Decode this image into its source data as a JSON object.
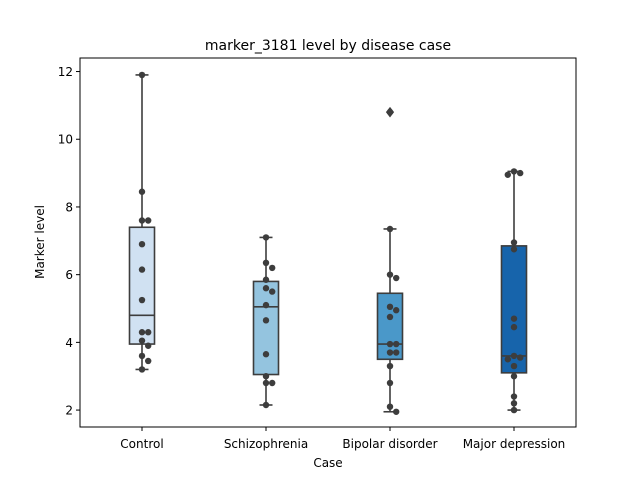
{
  "chart_data": {
    "type": "box",
    "title": "marker_3181 level by disease case",
    "xlabel": "Case",
    "ylabel": "Marker level",
    "ylim": [
      1.5,
      12.4
    ],
    "yticks": [
      2,
      4,
      6,
      8,
      10,
      12
    ],
    "categories": [
      "Control",
      "Schizophrenia",
      "Bipolar disorder",
      "Major depression"
    ],
    "box_colors": [
      "#d0e1f2",
      "#94c4df",
      "#4a98c9",
      "#1764ab"
    ],
    "edge_color": "#3d3d3d",
    "point_color": "#3d3d3d",
    "boxes": [
      {
        "whislo": 3.2,
        "q1": 3.95,
        "med": 4.8,
        "q3": 7.4,
        "whishi": 11.9,
        "fliers": []
      },
      {
        "whislo": 2.15,
        "q1": 3.05,
        "med": 5.05,
        "q3": 5.8,
        "whishi": 7.1,
        "fliers": []
      },
      {
        "whislo": 1.95,
        "q1": 3.5,
        "med": 3.95,
        "q3": 5.45,
        "whishi": 7.35,
        "fliers": [
          10.8
        ]
      },
      {
        "whislo": 2.0,
        "q1": 3.1,
        "med": 3.6,
        "q3": 6.85,
        "whishi": 9.05,
        "fliers": []
      }
    ],
    "points": [
      [
        11.9,
        8.45,
        7.6,
        7.6,
        6.9,
        6.15,
        5.25,
        4.3,
        4.3,
        4.05,
        3.9,
        3.6,
        3.45,
        3.2
      ],
      [
        7.1,
        6.35,
        6.2,
        5.85,
        5.6,
        5.5,
        5.1,
        4.65,
        3.65,
        3.0,
        2.8,
        2.8,
        2.15
      ],
      [
        10.8,
        7.35,
        6.0,
        5.9,
        5.05,
        4.95,
        4.75,
        3.95,
        3.95,
        3.7,
        3.7,
        3.3,
        2.8,
        2.1,
        1.95
      ],
      [
        9.05,
        9.0,
        8.95,
        6.95,
        6.75,
        4.7,
        4.45,
        3.6,
        3.55,
        3.5,
        3.3,
        3.0,
        2.4,
        2.2,
        2.0
      ]
    ]
  }
}
